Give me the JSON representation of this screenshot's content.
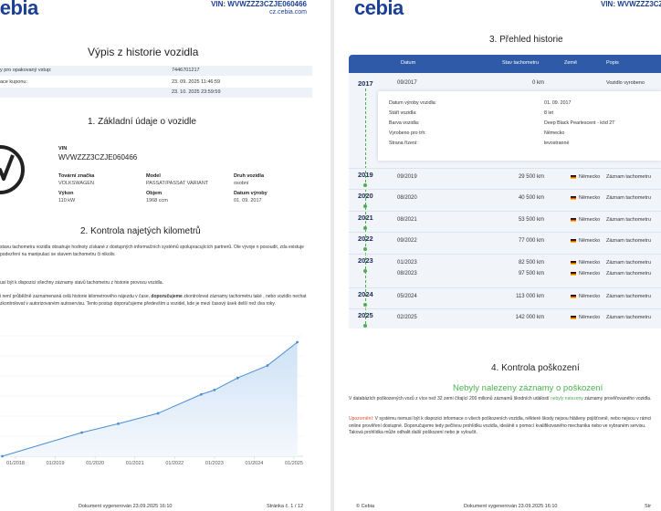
{
  "page1": {
    "logo": "cebia",
    "header_vin": "VIN: WVWZZZ3CZJE060466",
    "header_site": "cz.cebia.com",
    "title": "Výpis z historie vozidla",
    "info_rows": [
      {
        "label": "y pro opakovaný vstup:",
        "value": "7446701217"
      },
      {
        "label": "ace kuponu:",
        "value": "23. 09. 2025 11:46:59"
      },
      {
        "label": "",
        "value": "23. 10. 2025 23:59:59"
      }
    ],
    "section1_title": "1. Základní údaje o vozidle",
    "vin_label": "VIN",
    "vin_value": "WVWZZZ3CZJE060466",
    "fields": [
      {
        "label": "Tovární značka",
        "value": "VOLKSWAGEN"
      },
      {
        "label": "Model",
        "value": "PASSAT/PASSAT VARIANT"
      },
      {
        "label": "Druh vozidla",
        "value": "osobní"
      },
      {
        "label": "Výkon",
        "value": "110 kW"
      },
      {
        "label": "Objem",
        "value": "1968 ccm"
      },
      {
        "label": "Datum výroby",
        "value": "01. 09. 2017"
      }
    ],
    "section2_title": "2. Kontrola najetých kilometrů",
    "para1": "stavu tachometru vozidla obsahuje hodnoty získané z dostupných informačních systémů spolupracujících partnerů. Ole vývoje n posoudit, zda existuje podezření na manipulaci se stavem tachometru či nikoliv.",
    "para2": "usí být k dispozici všechny záznamy stavů tachometru z historie provozu vozidla.",
    "para3_a": "i není průběžně zaznamenaná celá historie kilometrového nájezdu v čase, ",
    "para3_bold": "doporučujeme",
    "para3_b": " zkontrolovat záznamy tachometru také , nebo vozidlo nechat zkontrolovat v autorizovaném autoservisu. Tento postup doporučujeme především u vozidel, kde je mezi časový úsek delší než dva roky.",
    "footer_doc": "Dokument vygenerován 23.09.2025 16:10",
    "footer_page": "Stránka č. 1 / 12"
  },
  "chart_data": {
    "type": "line",
    "categories": [
      "01/2018",
      "01/2019",
      "01/2020",
      "01/2021",
      "01/2022",
      "01/2023",
      "01/2024",
      "01/2025"
    ],
    "x": [
      "09/2017",
      "09/2019",
      "08/2020",
      "08/2021",
      "09/2022",
      "01/2023",
      "08/2023",
      "05/2024",
      "02/2025"
    ],
    "values": [
      0,
      29500,
      40500,
      53500,
      77000,
      82500,
      97500,
      113000,
      142000
    ],
    "title": "",
    "xlabel": "",
    "ylabel": "",
    "grid": true,
    "color": "#4a8fd4"
  },
  "page2": {
    "logo": "cebia",
    "header_vin": "VIN: WVWZZZ3CZJE060466",
    "section3_title": "3. Přehled historie",
    "columns": [
      "Datum",
      "Stav tachometru",
      "Země",
      "Popis"
    ],
    "first_row": {
      "year": "2017",
      "date": "09/2017",
      "km": "0 km",
      "desc": "Vozidlo vyrobeno"
    },
    "details": [
      {
        "label": "Datum výroby vozidla:",
        "value": "01. 09. 2017"
      },
      {
        "label": "Stáří vozidla:",
        "value": "8 let"
      },
      {
        "label": "Barva vozidla:",
        "value": "Deep Black Pearlescent - kód 2T"
      },
      {
        "label": "Vyrobeno pro trh:",
        "value": "Německo"
      },
      {
        "label": "Strana řízení:",
        "value": "levostranné"
      }
    ],
    "rows": [
      {
        "year": "2019",
        "date": "09/2019",
        "km": "29 500 km",
        "country": "Německo",
        "desc": "Záznam tachometru"
      },
      {
        "year": "2020",
        "date": "08/2020",
        "km": "40 500 km",
        "country": "Německo",
        "desc": "Záznam tachometru"
      },
      {
        "year": "2021",
        "date": "08/2021",
        "km": "53 500 km",
        "country": "Německo",
        "desc": "Záznam tachometru"
      },
      {
        "year": "2022",
        "date": "09/2022",
        "km": "77 000 km",
        "country": "Německo",
        "desc": "Záznam tachometru"
      },
      {
        "year": "2023",
        "date": "01/2023",
        "km": "82 500 km",
        "country": "Německo",
        "desc": "Záznam tachometru"
      },
      {
        "year": "",
        "date": "08/2023",
        "km": "97 500 km",
        "country": "Německo",
        "desc": "Záznam tachometru"
      },
      {
        "year": "2024",
        "date": "05/2024",
        "km": "113 000 km",
        "country": "Německo",
        "desc": "Záznam tachometru"
      },
      {
        "year": "2025",
        "date": "02/2025",
        "km": "142 000 km",
        "country": "Německo",
        "desc": "Záznam tachometru"
      }
    ],
    "section4_title": "4. Kontrola poškození",
    "damage_headline": "Nebyly nalezeny záznamy o poškození",
    "damage_p1_a": "V databázích poškozených vozů z více než 32 zemí čítající 200 milionů záznamů škodních událostí ",
    "damage_p1_green": "nebyly nalezeny",
    "damage_p1_b": " záznamy prověřovaného vozidla.",
    "damage_warn_label": "Upozornění:",
    "damage_p2": " V systému nemusí být k dispozici informace o všech poškozeních vozidla, některé škody nejsou hlášeny pojišťovně, nebo nejsou v rámci online prověření dostupné. Doporučujeme tedy pečlivou prohlídku vozidla, ideálně s pomocí kvalifikovaného mechanika nebo ve vybraném servisu. Taková prohlídka může odhalit další poškození nebo je vyloučit.",
    "footer_left": "© Cebia",
    "footer_doc": "Dokument vygenerován 23.09.2025 16:10",
    "footer_page": "Str"
  }
}
